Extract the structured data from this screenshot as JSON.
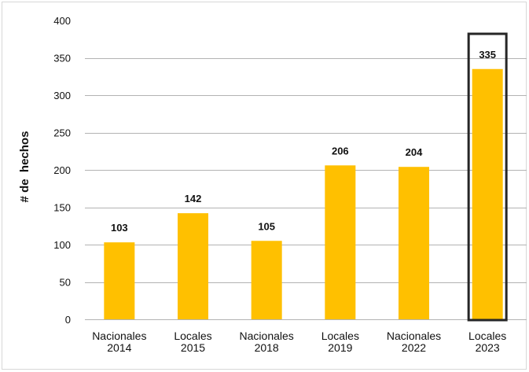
{
  "chart_data": {
    "type": "bar",
    "categories": [
      [
        "Nacionales",
        "2014"
      ],
      [
        "Locales",
        "2015"
      ],
      [
        "Nacionales",
        "2018"
      ],
      [
        "Locales",
        "2019"
      ],
      [
        "Nacionales",
        "2022"
      ],
      [
        "Locales",
        "2023"
      ]
    ],
    "values": [
      103,
      142,
      105,
      206,
      204,
      335
    ],
    "data_labels": [
      "103",
      "142",
      "105",
      "206",
      "204",
      "335"
    ],
    "title": "",
    "xlabel": "",
    "ylabel": "# de  hechos",
    "ylim": [
      0,
      400
    ],
    "yticks": [
      0,
      50,
      100,
      150,
      200,
      250,
      300,
      350,
      400
    ],
    "grid": "horizontal",
    "legend": "none",
    "highlighted_category_index": 5,
    "colors": {
      "bar": "#FFC000",
      "grid": "#b3b3b3",
      "highlight_border": "#262626",
      "text": "#111111"
    }
  }
}
